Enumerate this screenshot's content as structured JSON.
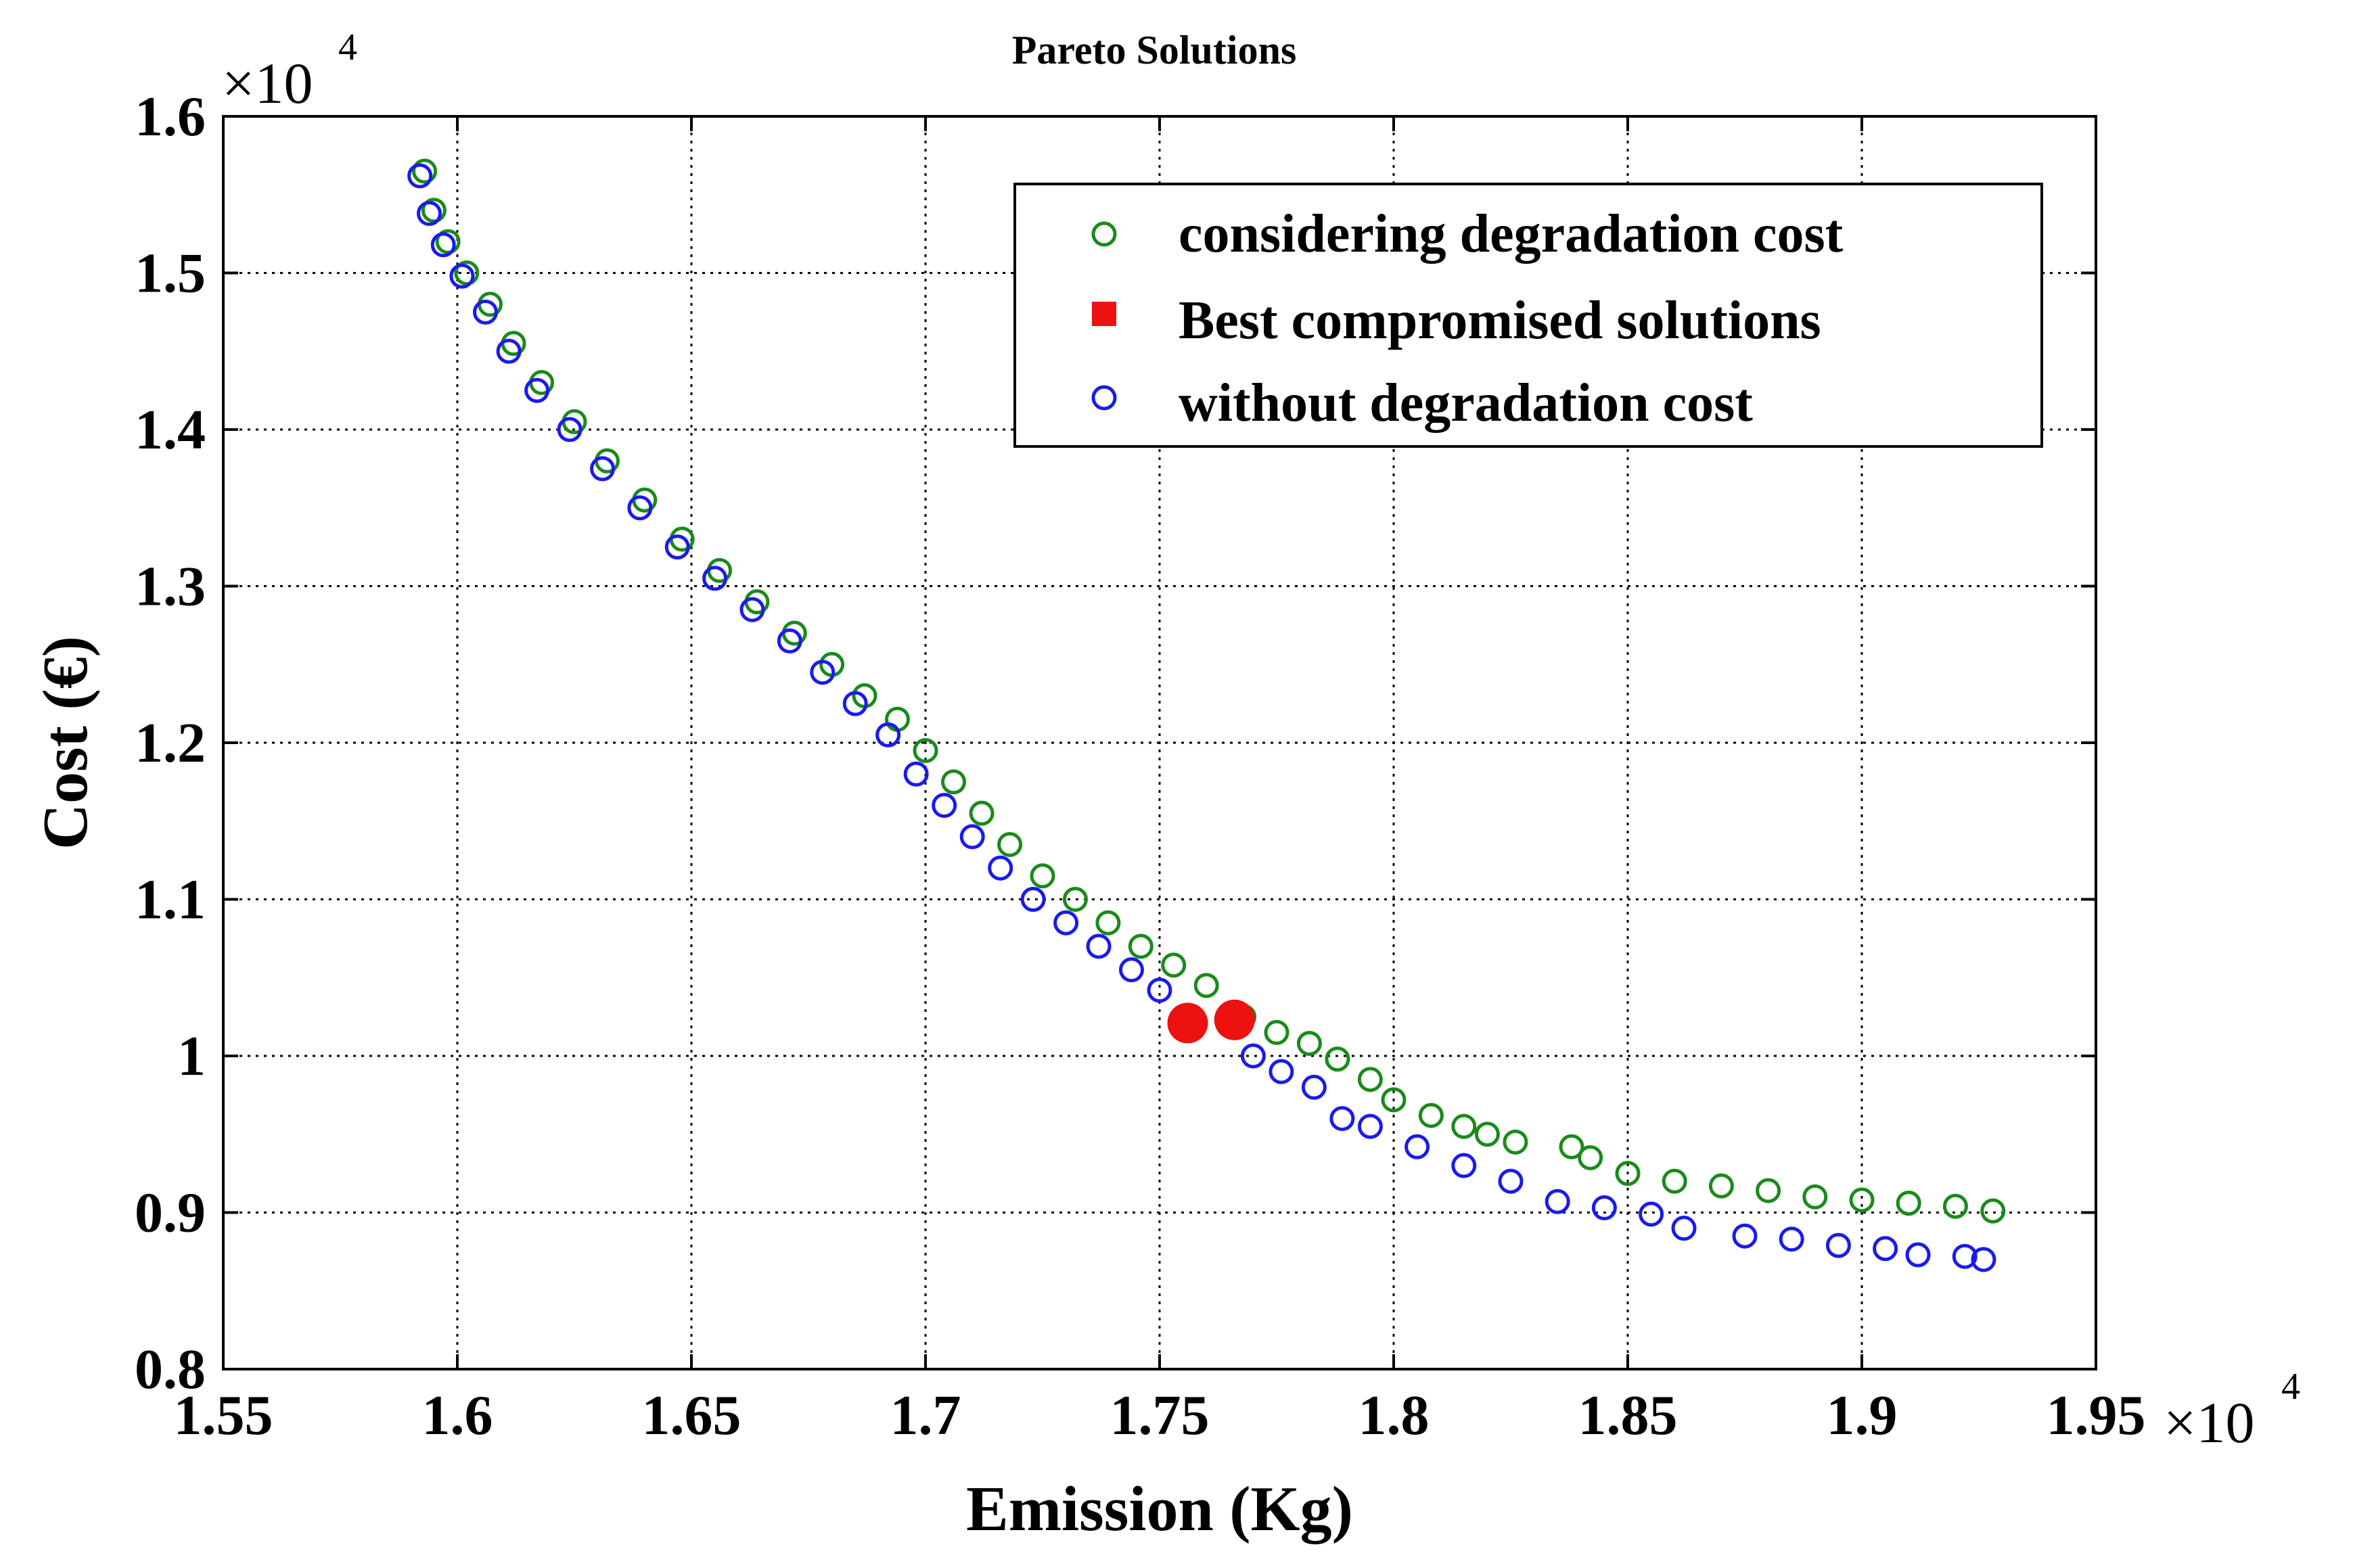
{
  "chart_data": {
    "type": "scatter",
    "title": "Pareto Solutions",
    "xlabel": "Emission (Kg)",
    "ylabel": "Cost (€)",
    "xlim": [
      15500,
      19500
    ],
    "ylim": [
      8000,
      16000
    ],
    "grid": true,
    "legend_position": "top-right",
    "x_exponent_label": "×10",
    "x_exponent_power": "4",
    "y_exponent_label": "×10",
    "y_exponent_power": "4",
    "xticks": [
      15500,
      16000,
      16500,
      17000,
      17500,
      18000,
      18500,
      19000,
      19500
    ],
    "xtick_labels": [
      "1.55",
      "1.6",
      "1.65",
      "1.7",
      "1.75",
      "1.8",
      "1.85",
      "1.9",
      "1.95"
    ],
    "yticks": [
      8000,
      9000,
      10000,
      11000,
      12000,
      13000,
      14000,
      15000,
      16000
    ],
    "ytick_labels": [
      "0.8",
      "0.9",
      "1",
      "1.1",
      "1.2",
      "1.3",
      "1.4",
      "1.5",
      "1.6"
    ],
    "series": [
      {
        "name": "considering degradation cost",
        "marker": "open-circle",
        "color": "#1a8a1a",
        "points": [
          [
            15930,
            15650
          ],
          [
            15950,
            15400
          ],
          [
            15980,
            15200
          ],
          [
            16020,
            15000
          ],
          [
            16070,
            14800
          ],
          [
            16120,
            14550
          ],
          [
            16180,
            14300
          ],
          [
            16250,
            14050
          ],
          [
            16320,
            13800
          ],
          [
            16400,
            13550
          ],
          [
            16480,
            13300
          ],
          [
            16560,
            13100
          ],
          [
            16640,
            12900
          ],
          [
            16720,
            12700
          ],
          [
            16800,
            12500
          ],
          [
            16870,
            12300
          ],
          [
            16940,
            12150
          ],
          [
            17000,
            11950
          ],
          [
            17060,
            11750
          ],
          [
            17120,
            11550
          ],
          [
            17180,
            11350
          ],
          [
            17250,
            11150
          ],
          [
            17320,
            11000
          ],
          [
            17390,
            10850
          ],
          [
            17460,
            10700
          ],
          [
            17530,
            10580
          ],
          [
            17600,
            10450
          ],
          [
            17680,
            10250
          ],
          [
            17750,
            10150
          ],
          [
            17820,
            10080
          ],
          [
            17880,
            9980
          ],
          [
            17950,
            9850
          ],
          [
            18000,
            9720
          ],
          [
            18080,
            9620
          ],
          [
            18150,
            9550
          ],
          [
            18200,
            9500
          ],
          [
            18260,
            9450
          ],
          [
            18380,
            9420
          ],
          [
            18420,
            9350
          ],
          [
            18500,
            9250
          ],
          [
            18600,
            9200
          ],
          [
            18700,
            9170
          ],
          [
            18800,
            9140
          ],
          [
            18900,
            9100
          ],
          [
            19000,
            9080
          ],
          [
            19100,
            9060
          ],
          [
            19200,
            9040
          ],
          [
            19280,
            9010
          ]
        ]
      },
      {
        "name": "Best compromised solutions",
        "marker": "filled-square",
        "color": "#ee1111",
        "points": [
          [
            17560,
            10210
          ],
          [
            17660,
            10230
          ]
        ]
      },
      {
        "name": "without degradation cost",
        "marker": "open-circle",
        "color": "#1a1aee",
        "points": [
          [
            15920,
            15620
          ],
          [
            15940,
            15380
          ],
          [
            15970,
            15180
          ],
          [
            16010,
            14980
          ],
          [
            16060,
            14750
          ],
          [
            16110,
            14500
          ],
          [
            16170,
            14250
          ],
          [
            16240,
            14000
          ],
          [
            16310,
            13750
          ],
          [
            16390,
            13500
          ],
          [
            16470,
            13250
          ],
          [
            16550,
            13050
          ],
          [
            16630,
            12850
          ],
          [
            16710,
            12650
          ],
          [
            16780,
            12450
          ],
          [
            16850,
            12250
          ],
          [
            16920,
            12050
          ],
          [
            16980,
            11800
          ],
          [
            17040,
            11600
          ],
          [
            17100,
            11400
          ],
          [
            17160,
            11200
          ],
          [
            17230,
            11000
          ],
          [
            17300,
            10850
          ],
          [
            17370,
            10700
          ],
          [
            17440,
            10550
          ],
          [
            17500,
            10420
          ],
          [
            17700,
            10000
          ],
          [
            17760,
            9900
          ],
          [
            17830,
            9800
          ],
          [
            17890,
            9600
          ],
          [
            17950,
            9550
          ],
          [
            18050,
            9420
          ],
          [
            18150,
            9300
          ],
          [
            18250,
            9200
          ],
          [
            18350,
            9070
          ],
          [
            18450,
            9030
          ],
          [
            18550,
            8990
          ],
          [
            18620,
            8900
          ],
          [
            18750,
            8850
          ],
          [
            18850,
            8830
          ],
          [
            18950,
            8790
          ],
          [
            19050,
            8770
          ],
          [
            19120,
            8730
          ],
          [
            19220,
            8720
          ],
          [
            19260,
            8700
          ]
        ]
      }
    ]
  }
}
